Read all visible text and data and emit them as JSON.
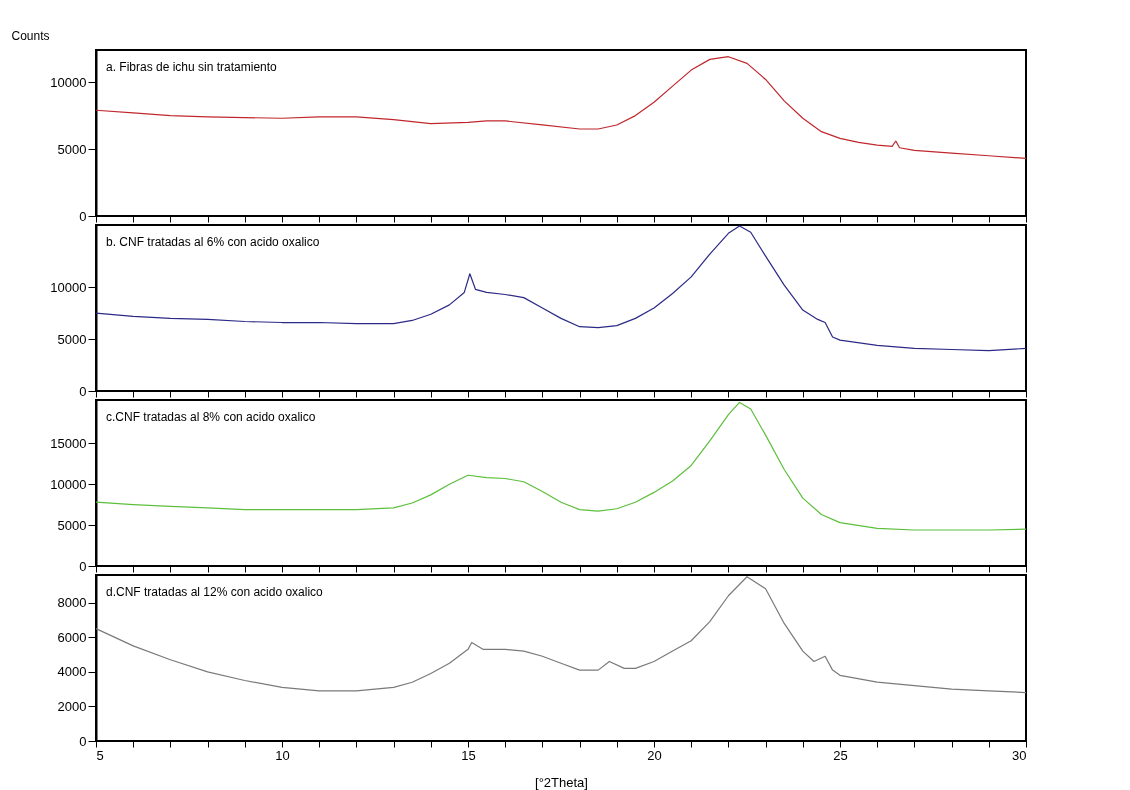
{
  "chart_data": [
    {
      "type": "line",
      "annotations": [
        "a. Fibras de ichu sin tratamiento"
      ],
      "ylabel": "Counts",
      "tick_labels": "y",
      "x": [
        5,
        6,
        7,
        8,
        9,
        10,
        11,
        12,
        13,
        14,
        15,
        15.5,
        16,
        17,
        18,
        18.5,
        19,
        19.5,
        20,
        20.5,
        21,
        21.5,
        22,
        22.5,
        23,
        23.5,
        24,
        24.5,
        25,
        25.5,
        26,
        26.4,
        26.5,
        26.6,
        27,
        28,
        29,
        30
      ],
      "series": [
        {
          "color": "#c0272d",
          "values": [
            7900,
            7700,
            7500,
            7400,
            7350,
            7300,
            7400,
            7400,
            7200,
            6900,
            7000,
            7100,
            7100,
            6800,
            6500,
            6500,
            6800,
            7500,
            8500,
            9700,
            10900,
            11700,
            11900,
            11400,
            10200,
            8600,
            7300,
            6300,
            5800,
            5500,
            5300,
            5200,
            5600,
            5100,
            4900,
            4700,
            4500,
            4300
          ]
        }
      ],
      "xlim": [
        5,
        30
      ],
      "ylim": [
        0,
        12400
      ],
      "yticks": [
        0,
        5000,
        10000
      ],
      "xticks": [
        5,
        {
          "value": 6,
          "label": null
        },
        {
          "value": 7,
          "label": null
        },
        {
          "value": 8,
          "label": null
        },
        {
          "value": 9,
          "label": null
        },
        10,
        {
          "value": 11,
          "label": null
        },
        {
          "value": 12,
          "label": null
        },
        {
          "value": 13,
          "label": null
        },
        {
          "value": 14,
          "label": null
        },
        15,
        {
          "value": 16,
          "label": null
        },
        {
          "value": 17,
          "label": null
        },
        {
          "value": 18,
          "label": null
        },
        {
          "value": 19,
          "label": null
        },
        20,
        {
          "value": 21,
          "label": null
        },
        {
          "value": 22,
          "label": null
        },
        {
          "value": 23,
          "label": null
        },
        {
          "value": 24,
          "label": null
        },
        25,
        {
          "value": 26,
          "label": null
        },
        {
          "value": 27,
          "label": null
        },
        {
          "value": 28,
          "label": null
        },
        {
          "value": 29,
          "label": null
        },
        30
      ]
    },
    {
      "type": "line",
      "annotations": [
        "b. CNF tratadas al 6% con acido oxalico"
      ],
      "tick_labels": "y",
      "x": [
        5,
        6,
        7,
        8,
        9,
        10,
        11,
        12,
        13,
        13.5,
        14,
        14.5,
        14.9,
        15.05,
        15.2,
        15.5,
        16,
        16.5,
        17,
        17.5,
        18,
        18.5,
        19,
        19.5,
        20,
        20.5,
        21,
        21.5,
        22,
        22.3,
        22.6,
        23,
        23.5,
        24,
        24.4,
        24.6,
        24.8,
        25,
        26,
        27,
        28,
        29,
        30
      ],
      "series": [
        {
          "color": "#2b2a86",
          "values": [
            7500,
            7200,
            7000,
            6900,
            6700,
            6600,
            6600,
            6500,
            6500,
            6800,
            7400,
            8300,
            9500,
            11300,
            9800,
            9500,
            9300,
            9000,
            8000,
            7000,
            6200,
            6100,
            6300,
            7000,
            8000,
            9400,
            11000,
            13200,
            15200,
            15900,
            15300,
            13000,
            10200,
            7800,
            6900,
            6600,
            5200,
            4900,
            4400,
            4100,
            4000,
            3900,
            4100
          ]
        }
      ],
      "xlim": [
        5,
        30
      ],
      "ylim": [
        0,
        16000
      ],
      "yticks": [
        0,
        5000,
        10000
      ],
      "xticks": [
        5,
        {
          "value": 6,
          "label": null
        },
        {
          "value": 7,
          "label": null
        },
        {
          "value": 8,
          "label": null
        },
        {
          "value": 9,
          "label": null
        },
        10,
        {
          "value": 11,
          "label": null
        },
        {
          "value": 12,
          "label": null
        },
        {
          "value": 13,
          "label": null
        },
        {
          "value": 14,
          "label": null
        },
        15,
        {
          "value": 16,
          "label": null
        },
        {
          "value": 17,
          "label": null
        },
        {
          "value": 18,
          "label": null
        },
        {
          "value": 19,
          "label": null
        },
        20,
        {
          "value": 21,
          "label": null
        },
        {
          "value": 22,
          "label": null
        },
        {
          "value": 23,
          "label": null
        },
        {
          "value": 24,
          "label": null
        },
        25,
        {
          "value": 26,
          "label": null
        },
        {
          "value": 27,
          "label": null
        },
        {
          "value": 28,
          "label": null
        },
        {
          "value": 29,
          "label": null
        },
        30
      ]
    },
    {
      "type": "line",
      "annotations": [
        "c.CNF tratadas al 8% con acido oxalico"
      ],
      "tick_labels": "y",
      "x": [
        5,
        6,
        7,
        8,
        9,
        10,
        11,
        12,
        13,
        13.5,
        14,
        14.5,
        15,
        15.5,
        16,
        16.5,
        17,
        17.5,
        18,
        18.5,
        19,
        19.5,
        20,
        20.5,
        21,
        21.5,
        22,
        22.3,
        22.6,
        23,
        23.5,
        24,
        24.5,
        25,
        26,
        27,
        28,
        29,
        30
      ],
      "series": [
        {
          "color": "#5cbf3c",
          "values": [
            7800,
            7500,
            7300,
            7100,
            6900,
            6900,
            6900,
            6900,
            7100,
            7700,
            8700,
            10000,
            11100,
            10800,
            10700,
            10300,
            9100,
            7800,
            6900,
            6700,
            7000,
            7800,
            9000,
            10400,
            12300,
            15300,
            18500,
            20000,
            19200,
            16000,
            11800,
            8300,
            6300,
            5300,
            4600,
            4400,
            4400,
            4400,
            4500
          ]
        }
      ],
      "xlim": [
        5,
        30
      ],
      "ylim": [
        0,
        20300
      ],
      "yticks": [
        0,
        5000,
        10000,
        15000
      ],
      "xticks": [
        5,
        {
          "value": 6,
          "label": null
        },
        {
          "value": 7,
          "label": null
        },
        {
          "value": 8,
          "label": null
        },
        {
          "value": 9,
          "label": null
        },
        10,
        {
          "value": 11,
          "label": null
        },
        {
          "value": 12,
          "label": null
        },
        {
          "value": 13,
          "label": null
        },
        {
          "value": 14,
          "label": null
        },
        15,
        {
          "value": 16,
          "label": null
        },
        {
          "value": 17,
          "label": null
        },
        {
          "value": 18,
          "label": null
        },
        {
          "value": 19,
          "label": null
        },
        20,
        {
          "value": 21,
          "label": null
        },
        {
          "value": 22,
          "label": null
        },
        {
          "value": 23,
          "label": null
        },
        {
          "value": 24,
          "label": null
        },
        25,
        {
          "value": 26,
          "label": null
        },
        {
          "value": 27,
          "label": null
        },
        {
          "value": 28,
          "label": null
        },
        {
          "value": 29,
          "label": null
        },
        30
      ]
    },
    {
      "type": "line",
      "annotations": [
        "d.CNF tratadas al 12% con acido oxalico"
      ],
      "xlabel": "[°2Theta]",
      "x": [
        5,
        6,
        7,
        8,
        9,
        10,
        11,
        12,
        13,
        13.5,
        14,
        14.5,
        15,
        15.1,
        15.4,
        16,
        16.5,
        17,
        17.5,
        18,
        18.5,
        18.8,
        19.2,
        19.5,
        20,
        20.5,
        21,
        21.5,
        22,
        22.5,
        23,
        23.5,
        24,
        24.3,
        24.6,
        24.8,
        25,
        26,
        27,
        28,
        29,
        30
      ],
      "series": [
        {
          "color": "#7a7a7a",
          "values": [
            6500,
            5500,
            4700,
            4000,
            3500,
            3100,
            2900,
            2900,
            3100,
            3400,
            3900,
            4500,
            5300,
            5700,
            5300,
            5300,
            5200,
            4900,
            4500,
            4100,
            4100,
            4600,
            4200,
            4200,
            4600,
            5200,
            5800,
            6900,
            8400,
            9500,
            8800,
            6800,
            5200,
            4600,
            4900,
            4100,
            3800,
            3400,
            3200,
            3000,
            2900,
            2800
          ]
        }
      ],
      "xlim": [
        5,
        30
      ],
      "ylim": [
        0,
        9600
      ],
      "yticks": [
        0,
        2000,
        4000,
        6000,
        8000
      ],
      "xticks": [
        5,
        {
          "value": 6,
          "label": null
        },
        {
          "value": 7,
          "label": null
        },
        {
          "value": 8,
          "label": null
        },
        {
          "value": 9,
          "label": null
        },
        10,
        {
          "value": 11,
          "label": null
        },
        {
          "value": 12,
          "label": null
        },
        {
          "value": 13,
          "label": null
        },
        {
          "value": 14,
          "label": null
        },
        15,
        {
          "value": 16,
          "label": null
        },
        {
          "value": 17,
          "label": null
        },
        {
          "value": 18,
          "label": null
        },
        {
          "value": 19,
          "label": null
        },
        20,
        {
          "value": 21,
          "label": null
        },
        {
          "value": 22,
          "label": null
        },
        {
          "value": 23,
          "label": null
        },
        {
          "value": 24,
          "label": null
        },
        25,
        {
          "value": 26,
          "label": null
        },
        {
          "value": 27,
          "label": null
        },
        {
          "value": 28,
          "label": null
        },
        {
          "value": 29,
          "label": null
        },
        30
      ]
    }
  ]
}
